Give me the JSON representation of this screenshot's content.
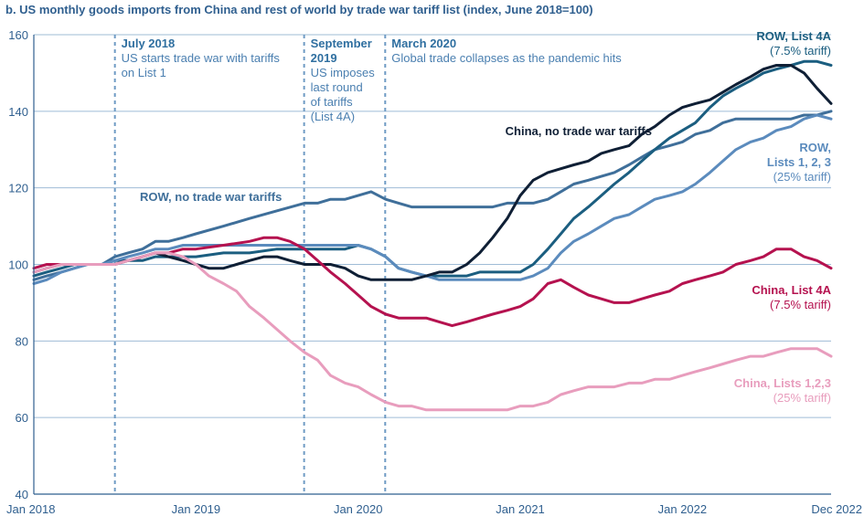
{
  "chart_data": {
    "type": "line",
    "title": "b. US monthly goods imports from China and rest of world by trade war tariff list (index, June 2018=100)",
    "ylim": [
      40,
      160
    ],
    "yticks": [
      40,
      60,
      80,
      100,
      120,
      140,
      160
    ],
    "xrange": [
      2018.0,
      2022.917
    ],
    "xticks": [
      {
        "value": 2018.0,
        "label": "Jan 2018"
      },
      {
        "value": 2019.0,
        "label": "Jan 2019"
      },
      {
        "value": 2020.0,
        "label": "Jan 2020"
      },
      {
        "value": 2021.0,
        "label": "Jan 2021"
      },
      {
        "value": 2022.0,
        "label": "Jan 2022"
      },
      {
        "value": 2022.917,
        "label": "Dec 2022"
      }
    ],
    "events": [
      {
        "x": 2018.5,
        "head": [
          "July 2018"
        ],
        "body": [
          "US starts trade war with tariffs",
          "on List 1"
        ]
      },
      {
        "x": 2019.667,
        "head": [
          "September",
          "2019"
        ],
        "body": [
          "US imposes",
          "last round",
          "of tariffs",
          "(List 4A)"
        ]
      },
      {
        "x": 2020.167,
        "head": [
          "March 2020"
        ],
        "body": [
          "Global trade collapses as the pandemic hits"
        ]
      }
    ],
    "series": [
      {
        "name": "ROW, no trade war tariffs",
        "color": "#3f6f9a",
        "x": [
          2018.0,
          2018.08,
          2018.17,
          2018.25,
          2018.33,
          2018.42,
          2018.5,
          2018.58,
          2018.67,
          2018.75,
          2018.83,
          2018.92,
          2019.0,
          2019.17,
          2019.33,
          2019.5,
          2019.67,
          2019.75,
          2019.83,
          2019.92,
          2020.0,
          2020.08,
          2020.17,
          2020.25,
          2020.33,
          2020.42,
          2020.5,
          2020.67,
          2020.83,
          2020.92,
          2021.0,
          2021.08,
          2021.17,
          2021.25,
          2021.33,
          2021.42,
          2021.5,
          2021.58,
          2021.67,
          2021.75,
          2021.83,
          2021.92,
          2022.0,
          2022.08,
          2022.17,
          2022.25,
          2022.33,
          2022.42,
          2022.5,
          2022.58,
          2022.67,
          2022.75,
          2022.83,
          2022.917
        ],
        "values": [
          96,
          97,
          98,
          99,
          100,
          100,
          102,
          103,
          104,
          106,
          106,
          107,
          108,
          110,
          112,
          114,
          116,
          116,
          117,
          117,
          118,
          119,
          117,
          116,
          115,
          115,
          115,
          115,
          115,
          116,
          116,
          116,
          117,
          119,
          121,
          122,
          123,
          124,
          126,
          128,
          130,
          131,
          132,
          134,
          135,
          137,
          138,
          138,
          138,
          138,
          138,
          139,
          139,
          140
        ]
      },
      {
        "name": "ROW, List 4A",
        "color": "#1b5e80",
        "x": [
          2018.0,
          2018.08,
          2018.17,
          2018.25,
          2018.33,
          2018.42,
          2018.5,
          2018.58,
          2018.67,
          2018.75,
          2018.83,
          2018.92,
          2019.0,
          2019.17,
          2019.33,
          2019.5,
          2019.67,
          2019.75,
          2019.83,
          2019.92,
          2020.0,
          2020.08,
          2020.17,
          2020.25,
          2020.33,
          2020.42,
          2020.5,
          2020.58,
          2020.67,
          2020.75,
          2020.83,
          2020.92,
          2021.0,
          2021.08,
          2021.17,
          2021.25,
          2021.33,
          2021.42,
          2021.5,
          2021.58,
          2021.67,
          2021.75,
          2021.83,
          2021.92,
          2022.0,
          2022.08,
          2022.17,
          2022.25,
          2022.33,
          2022.42,
          2022.5,
          2022.58,
          2022.67,
          2022.75,
          2022.83,
          2022.917
        ],
        "values": [
          97,
          98,
          99,
          100,
          100,
          100,
          101,
          101,
          101,
          102,
          102,
          102,
          102,
          103,
          103,
          104,
          104,
          104,
          104,
          104,
          105,
          104,
          102,
          99,
          98,
          97,
          97,
          97,
          97,
          98,
          98,
          98,
          98,
          100,
          104,
          108,
          112,
          115,
          118,
          121,
          124,
          127,
          130,
          133,
          135,
          137,
          141,
          144,
          146,
          148,
          150,
          151,
          152,
          153,
          153,
          152
        ]
      },
      {
        "name": "ROW, Lists 1, 2, 3",
        "color": "#5b8bbd",
        "x": [
          2018.0,
          2018.08,
          2018.17,
          2018.25,
          2018.33,
          2018.42,
          2018.5,
          2018.58,
          2018.67,
          2018.75,
          2018.83,
          2018.92,
          2019.0,
          2019.17,
          2019.33,
          2019.5,
          2019.67,
          2019.75,
          2019.83,
          2019.92,
          2020.0,
          2020.08,
          2020.17,
          2020.25,
          2020.33,
          2020.42,
          2020.5,
          2020.58,
          2020.67,
          2020.75,
          2020.83,
          2020.92,
          2021.0,
          2021.08,
          2021.17,
          2021.25,
          2021.33,
          2021.42,
          2021.5,
          2021.58,
          2021.67,
          2021.75,
          2021.83,
          2021.92,
          2022.0,
          2022.08,
          2022.17,
          2022.25,
          2022.33,
          2022.42,
          2022.5,
          2022.58,
          2022.67,
          2022.75,
          2022.83,
          2022.917
        ],
        "values": [
          95,
          96,
          98,
          99,
          100,
          100,
          101,
          102,
          103,
          104,
          104,
          105,
          105,
          105,
          105,
          105,
          105,
          105,
          105,
          105,
          105,
          104,
          102,
          99,
          98,
          97,
          96,
          96,
          96,
          96,
          96,
          96,
          96,
          97,
          99,
          103,
          106,
          108,
          110,
          112,
          113,
          115,
          117,
          118,
          119,
          121,
          124,
          127,
          130,
          132,
          133,
          135,
          136,
          138,
          139,
          138
        ]
      },
      {
        "name": "China, no trade war tariffs",
        "color": "#0f1f35",
        "x": [
          2018.0,
          2018.08,
          2018.17,
          2018.25,
          2018.33,
          2018.42,
          2018.5,
          2018.58,
          2018.67,
          2018.75,
          2018.83,
          2018.92,
          2019.0,
          2019.08,
          2019.17,
          2019.25,
          2019.33,
          2019.42,
          2019.5,
          2019.58,
          2019.67,
          2019.75,
          2019.83,
          2019.92,
          2020.0,
          2020.08,
          2020.17,
          2020.25,
          2020.33,
          2020.42,
          2020.5,
          2020.58,
          2020.67,
          2020.75,
          2020.83,
          2020.92,
          2021.0,
          2021.08,
          2021.17,
          2021.25,
          2021.33,
          2021.42,
          2021.5,
          2021.58,
          2021.67,
          2021.75,
          2021.83,
          2021.92,
          2022.0,
          2022.08,
          2022.17,
          2022.25,
          2022.33,
          2022.42,
          2022.5,
          2022.58,
          2022.67,
          2022.75,
          2022.83,
          2022.917
        ],
        "values": [
          98,
          99,
          100,
          100,
          100,
          100,
          100,
          101,
          102,
          103,
          102,
          101,
          100,
          99,
          99,
          100,
          101,
          102,
          102,
          101,
          100,
          100,
          100,
          99,
          97,
          96,
          96,
          96,
          96,
          97,
          98,
          98,
          100,
          103,
          107,
          112,
          118,
          122,
          124,
          125,
          126,
          127,
          129,
          130,
          131,
          134,
          136,
          139,
          141,
          142,
          143,
          145,
          147,
          149,
          151,
          152,
          152,
          150,
          146,
          142
        ]
      },
      {
        "name": "China, List 4A",
        "color": "#b5124f",
        "x": [
          2018.0,
          2018.08,
          2018.17,
          2018.25,
          2018.33,
          2018.42,
          2018.5,
          2018.58,
          2018.67,
          2018.75,
          2018.83,
          2018.92,
          2019.0,
          2019.17,
          2019.33,
          2019.42,
          2019.5,
          2019.58,
          2019.67,
          2019.75,
          2019.83,
          2019.92,
          2020.0,
          2020.08,
          2020.17,
          2020.25,
          2020.33,
          2020.42,
          2020.5,
          2020.58,
          2020.67,
          2020.75,
          2020.83,
          2020.92,
          2021.0,
          2021.08,
          2021.17,
          2021.25,
          2021.33,
          2021.42,
          2021.5,
          2021.58,
          2021.67,
          2021.75,
          2021.83,
          2021.92,
          2022.0,
          2022.08,
          2022.17,
          2022.25,
          2022.33,
          2022.42,
          2022.5,
          2022.58,
          2022.67,
          2022.75,
          2022.83,
          2022.917
        ],
        "values": [
          99,
          100,
          100,
          100,
          100,
          100,
          100,
          101,
          102,
          103,
          103,
          104,
          104,
          105,
          106,
          107,
          107,
          106,
          104,
          101,
          98,
          95,
          92,
          89,
          87,
          86,
          86,
          86,
          85,
          84,
          85,
          86,
          87,
          88,
          89,
          91,
          95,
          96,
          94,
          92,
          91,
          90,
          90,
          91,
          92,
          93,
          95,
          96,
          97,
          98,
          100,
          101,
          102,
          104,
          104,
          102,
          101,
          99
        ]
      },
      {
        "name": "China, Lists 1,2,3",
        "color": "#e89dbd",
        "x": [
          2018.0,
          2018.08,
          2018.17,
          2018.25,
          2018.33,
          2018.42,
          2018.5,
          2018.58,
          2018.67,
          2018.75,
          2018.83,
          2018.92,
          2019.0,
          2019.08,
          2019.17,
          2019.25,
          2019.33,
          2019.42,
          2019.5,
          2019.58,
          2019.67,
          2019.75,
          2019.83,
          2019.92,
          2020.0,
          2020.08,
          2020.17,
          2020.25,
          2020.33,
          2020.42,
          2020.5,
          2020.58,
          2020.67,
          2020.75,
          2020.83,
          2020.92,
          2021.0,
          2021.08,
          2021.17,
          2021.25,
          2021.33,
          2021.42,
          2021.5,
          2021.58,
          2021.67,
          2021.75,
          2021.83,
          2021.92,
          2022.0,
          2022.08,
          2022.17,
          2022.25,
          2022.33,
          2022.42,
          2022.5,
          2022.58,
          2022.67,
          2022.75,
          2022.83,
          2022.917
        ],
        "values": [
          98,
          99,
          100,
          100,
          100,
          100,
          100,
          101,
          102,
          103,
          103,
          102,
          100,
          97,
          95,
          93,
          89,
          86,
          83,
          80,
          77,
          75,
          71,
          69,
          68,
          66,
          64,
          63,
          63,
          62,
          62,
          62,
          62,
          62,
          62,
          62,
          63,
          63,
          64,
          66,
          67,
          68,
          68,
          68,
          69,
          69,
          70,
          70,
          71,
          72,
          73,
          74,
          75,
          76,
          76,
          77,
          78,
          78,
          78,
          76
        ]
      }
    ],
    "labels": [
      {
        "series": "ROW, List 4A",
        "lines": [
          "ROW, List 4A",
          "(7.5% tariff)"
        ]
      },
      {
        "series": "China, no trade war tariffs",
        "lines": [
          "China, no trade war tariffs"
        ]
      },
      {
        "series": "ROW, Lists 1, 2, 3",
        "lines": [
          "ROW,",
          "Lists 1, 2, 3",
          "(25% tariff)"
        ]
      },
      {
        "series": "ROW, no trade war tariffs",
        "lines": [
          "ROW, no trade war tariffs"
        ]
      },
      {
        "series": "China, List 4A",
        "lines": [
          "China, List 4A",
          "(7.5% tariff)"
        ]
      },
      {
        "series": "China, Lists 1,2,3",
        "lines": [
          "China, Lists 1,2,3",
          "(25% tariff)"
        ]
      }
    ]
  }
}
